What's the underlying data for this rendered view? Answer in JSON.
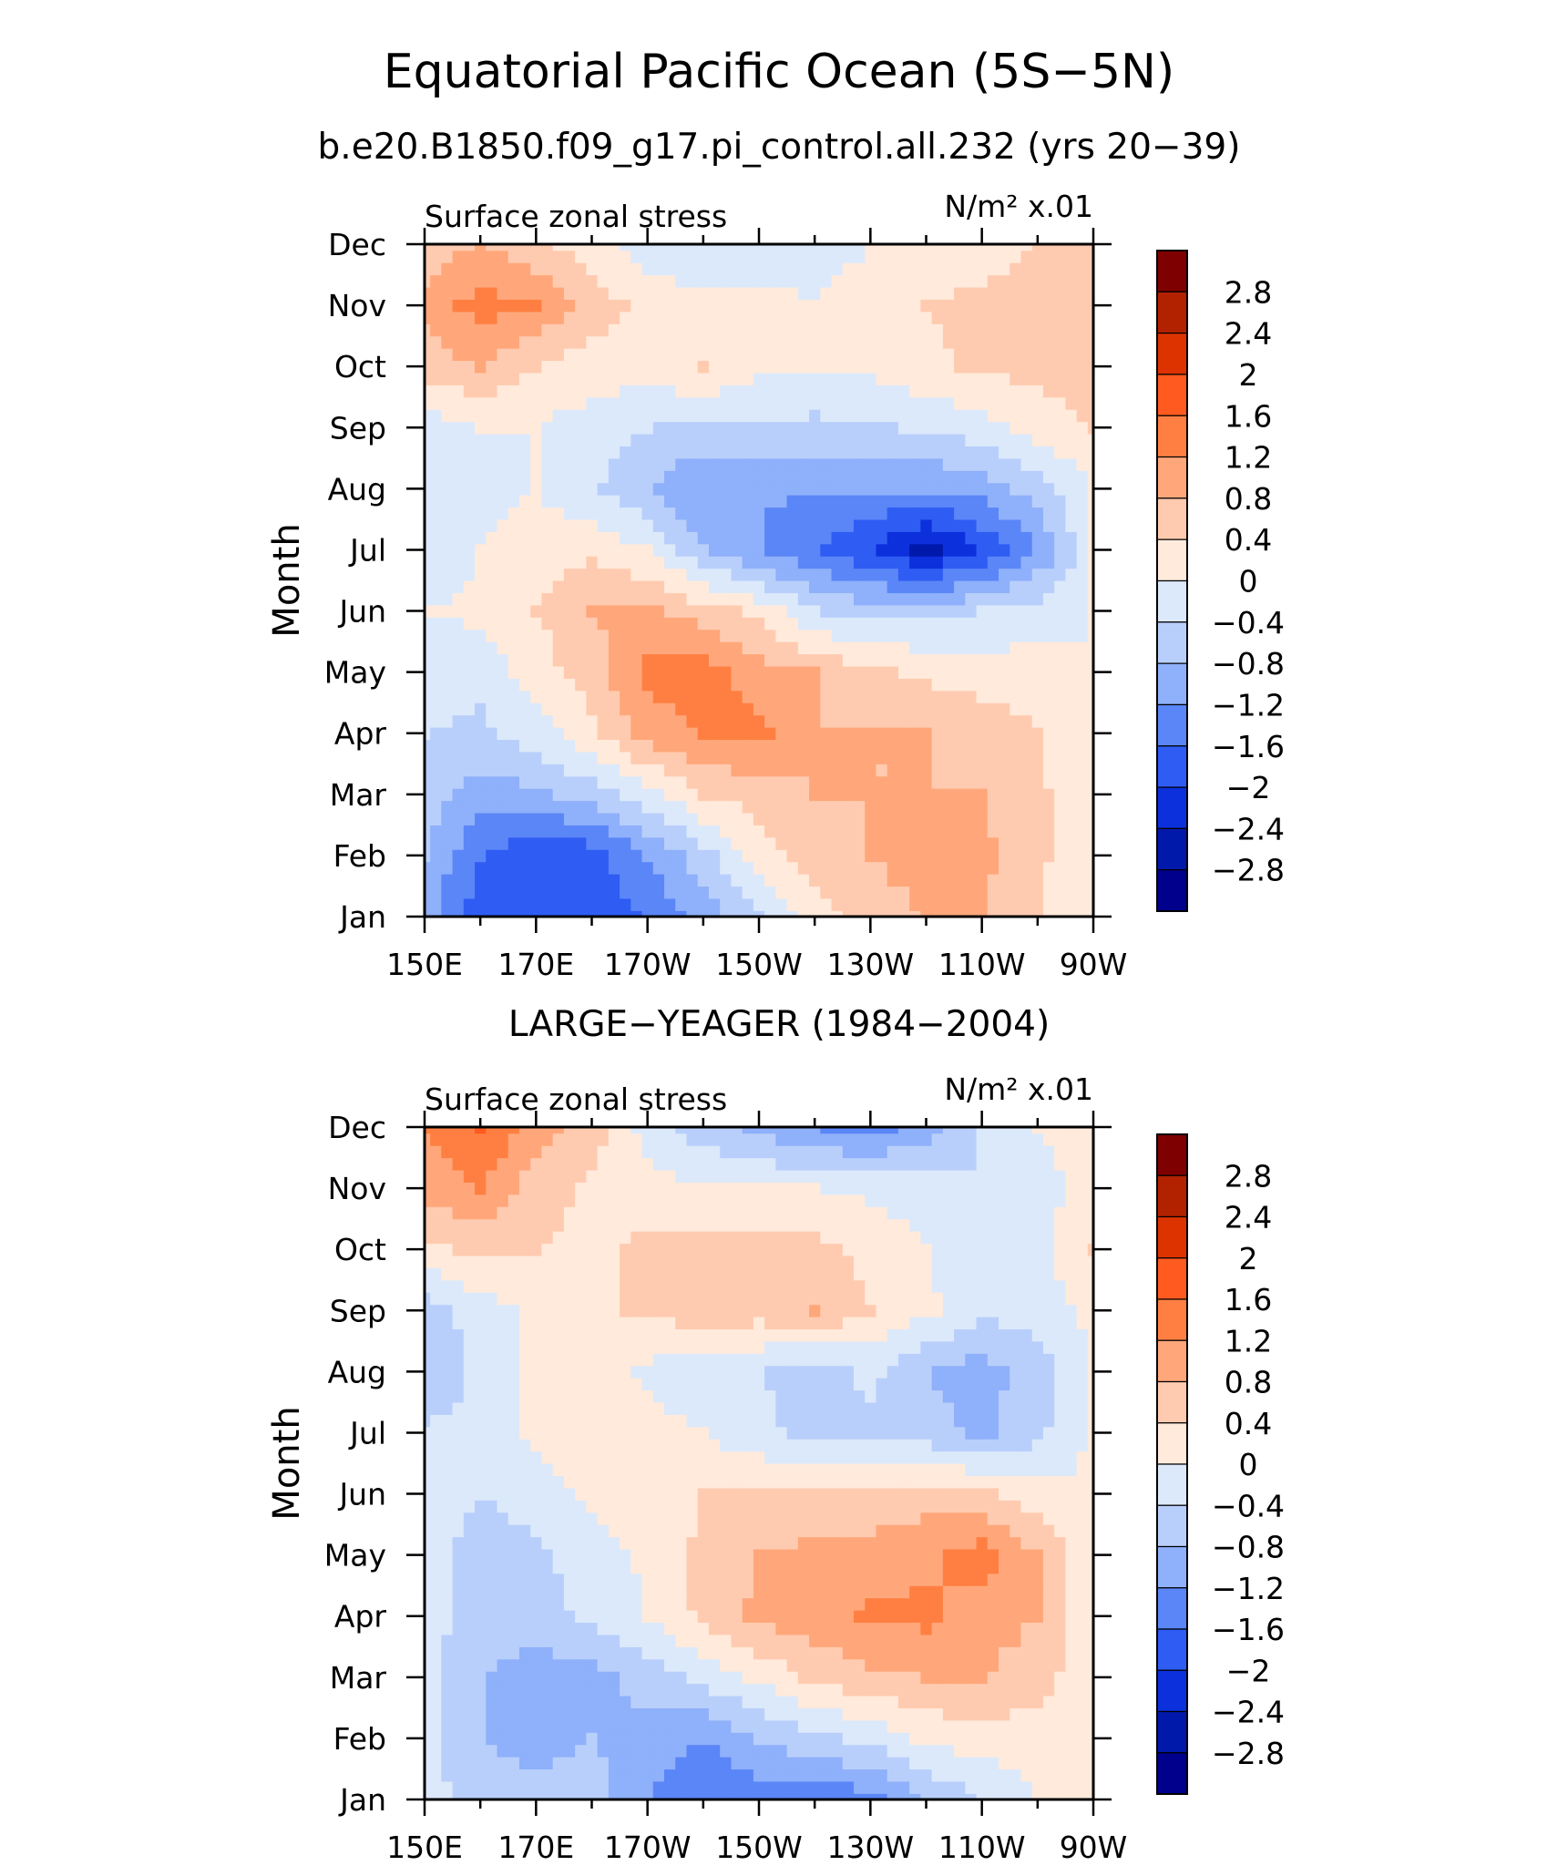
{
  "header": {
    "title": "Equatorial Pacific Ocean (5S−5N)",
    "subtitle": "b.e20.B1850.f09_g17.pi_control.all.232 (yrs 20−39)"
  },
  "colorbar": {
    "levels": [
      "2.8",
      "2.4",
      "2",
      "1.6",
      "1.2",
      "0.8",
      "0.4",
      "0",
      "−0.4",
      "−0.8",
      "−1.2",
      "−1.6",
      "−2",
      "−2.4",
      "−2.8"
    ],
    "colors": [
      "#7f0000",
      "#b22200",
      "#dd3300",
      "#ff5a1f",
      "#ff7f42",
      "#ffa77a",
      "#ffcbb0",
      "#ffeadb",
      "#dce9fb",
      "#b9cffb",
      "#8fb0fa",
      "#5a86f7",
      "#2f5cf3",
      "#0c30dc",
      "#0019aa",
      "#00008c"
    ]
  },
  "chart_data": [
    {
      "type": "heatmap",
      "panel_title": "",
      "left_label": "Surface zonal stress",
      "units": "N/m² x.01",
      "ylabel": "Month",
      "xlabel": "",
      "x_ticks": [
        "150E",
        "170E",
        "170W",
        "150W",
        "130W",
        "110W",
        "90W"
      ],
      "y_ticks": [
        "Jan",
        "Feb",
        "Mar",
        "Apr",
        "May",
        "Jun",
        "Jul",
        "Aug",
        "Sep",
        "Oct",
        "Nov",
        "Dec"
      ],
      "x": [
        150,
        160,
        170,
        180,
        190,
        200,
        210,
        220,
        230,
        240,
        250,
        260,
        270
      ],
      "values": [
        [
          -1.0,
          -1.8,
          -2.0,
          -1.8,
          -1.6,
          -1.0,
          -0.5,
          0.2,
          0.6,
          0.8,
          0.8,
          0.4,
          0.0
        ],
        [
          -0.8,
          -1.6,
          -2.0,
          -1.8,
          -1.2,
          -0.6,
          0.2,
          0.6,
          0.8,
          1.0,
          0.9,
          0.5,
          0.0
        ],
        [
          -0.6,
          -1.0,
          -0.9,
          -0.6,
          -0.2,
          0.4,
          0.6,
          0.8,
          0.8,
          0.8,
          0.8,
          0.5,
          0.0
        ],
        [
          -0.4,
          -0.5,
          -0.2,
          0.3,
          1.0,
          1.2,
          1.3,
          0.8,
          0.8,
          0.8,
          0.7,
          0.4,
          0.0
        ],
        [
          -0.2,
          -0.3,
          0.2,
          0.6,
          1.3,
          1.4,
          1.0,
          0.8,
          0.5,
          0.3,
          0.2,
          0.2,
          0.0
        ],
        [
          0.0,
          0.1,
          0.4,
          0.8,
          0.9,
          0.6,
          0.3,
          -0.4,
          -0.6,
          -0.5,
          -0.4,
          -0.2,
          0.0
        ],
        [
          -0.4,
          0.0,
          0.2,
          0.3,
          0.0,
          -0.8,
          -1.2,
          -1.6,
          -2.0,
          -2.6,
          -2.0,
          -1.2,
          0.0
        ],
        [
          -0.4,
          -0.1,
          0.0,
          -0.3,
          -0.8,
          -1.2,
          -1.2,
          -1.1,
          -1.2,
          -1.2,
          -1.0,
          -0.6,
          0.0
        ],
        [
          -0.2,
          0.0,
          0.0,
          -0.2,
          -0.4,
          -0.5,
          -0.5,
          -0.5,
          -0.5,
          -0.3,
          -0.2,
          0.2,
          0.4
        ],
        [
          0.6,
          0.8,
          0.4,
          0.2,
          0.2,
          0.4,
          0.1,
          0.0,
          0.1,
          0.3,
          0.5,
          0.5,
          0.6
        ],
        [
          0.9,
          1.4,
          1.2,
          0.6,
          0.3,
          0.2,
          0.1,
          0.0,
          0.1,
          0.4,
          0.5,
          0.6,
          0.6
        ],
        [
          0.6,
          0.8,
          0.5,
          0.2,
          -0.3,
          -0.4,
          -0.2,
          -0.1,
          0.0,
          0.1,
          0.2,
          0.4,
          0.6
        ]
      ],
      "xlim": [
        150,
        270
      ],
      "ylim": [
        "Jan",
        "Dec"
      ],
      "levels": [
        -2.8,
        -2.4,
        -2,
        -1.6,
        -1.2,
        -0.8,
        -0.4,
        0,
        0.4,
        0.8,
        1.2,
        1.6,
        2,
        2.4,
        2.8
      ]
    },
    {
      "type": "heatmap",
      "panel_title": "LARGE−YEAGER (1984−2004)",
      "left_label": "Surface zonal stress",
      "units": "N/m² x.01",
      "ylabel": "Month",
      "xlabel": "",
      "x_ticks": [
        "150E",
        "170E",
        "170W",
        "150W",
        "130W",
        "110W",
        "90W"
      ],
      "y_ticks": [
        "Jan",
        "Feb",
        "Mar",
        "Apr",
        "May",
        "Jun",
        "Jul",
        "Aug",
        "Sep",
        "Oct",
        "Nov",
        "Dec"
      ],
      "x": [
        150,
        160,
        170,
        180,
        190,
        200,
        210,
        220,
        230,
        240,
        250,
        260,
        270
      ],
      "values": [
        [
          -0.2,
          -0.6,
          -0.6,
          -0.6,
          -1.2,
          -1.6,
          -1.4,
          -1.6,
          -1.3,
          -0.8,
          -0.4,
          0.0,
          0.2
        ],
        [
          -0.3,
          -0.8,
          -1.0,
          -0.8,
          -1.0,
          -1.2,
          -0.8,
          -0.5,
          -0.3,
          0.1,
          0.2,
          0.2,
          0.1
        ],
        [
          -0.3,
          -0.8,
          -1.0,
          -1.0,
          -0.6,
          -0.3,
          0.1,
          0.5,
          0.7,
          0.8,
          0.8,
          0.6,
          0.1
        ],
        [
          -0.2,
          -0.6,
          -0.6,
          -0.3,
          0.0,
          0.5,
          0.9,
          1.0,
          1.3,
          1.3,
          1.0,
          0.8,
          0.1
        ],
        [
          -0.2,
          -0.6,
          -0.5,
          -0.2,
          0.1,
          0.5,
          0.8,
          0.9,
          0.9,
          1.1,
          1.4,
          0.8,
          0.1
        ],
        [
          -0.2,
          -0.4,
          -0.2,
          0.1,
          0.2,
          0.4,
          0.5,
          0.5,
          0.6,
          0.6,
          0.5,
          0.2,
          0.0
        ],
        [
          -0.3,
          -0.3,
          0.1,
          0.2,
          0.2,
          0.0,
          -0.3,
          -0.5,
          -0.5,
          -0.6,
          -0.9,
          -0.5,
          0.1
        ],
        [
          -0.8,
          -0.3,
          0.1,
          0.3,
          -0.1,
          -0.3,
          -0.4,
          -0.6,
          -0.3,
          -0.8,
          -1.0,
          -0.6,
          0.0
        ],
        [
          -0.6,
          -0.2,
          0.1,
          0.3,
          0.5,
          0.6,
          0.6,
          0.8,
          0.4,
          0.1,
          -0.3,
          -0.2,
          0.1
        ],
        [
          0.3,
          0.5,
          0.4,
          0.3,
          0.5,
          0.6,
          0.5,
          0.5,
          0.3,
          0.0,
          -0.2,
          -0.1,
          0.4
        ],
        [
          1.0,
          1.2,
          0.6,
          0.3,
          0.2,
          0.0,
          0.0,
          0.0,
          -0.1,
          -0.2,
          -0.4,
          -0.2,
          0.2
        ],
        [
          1.2,
          1.6,
          1.0,
          0.6,
          -0.2,
          -0.6,
          -0.9,
          -1.2,
          -1.4,
          -1.0,
          -0.4,
          0.0,
          0.2
        ]
      ],
      "xlim": [
        150,
        270
      ],
      "ylim": [
        "Jan",
        "Dec"
      ],
      "levels": [
        -2.8,
        -2.4,
        -2,
        -1.6,
        -1.2,
        -0.8,
        -0.4,
        0,
        0.4,
        0.8,
        1.2,
        1.6,
        2,
        2.4,
        2.8
      ]
    }
  ]
}
